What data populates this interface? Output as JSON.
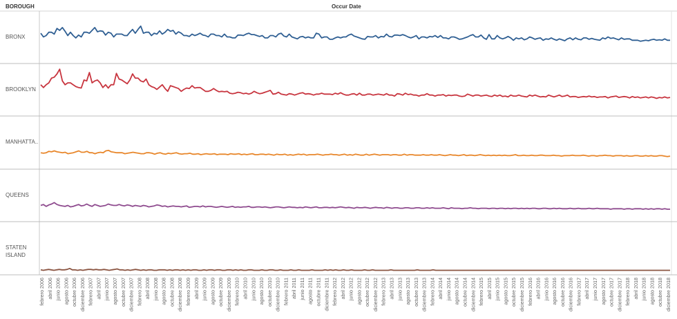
{
  "header": {
    "dimension": "BOROUGH",
    "column_title": "Occur Date"
  },
  "chart_data": {
    "type": "line",
    "title": "",
    "xlabel": "Occur Date",
    "ylabel": "",
    "grid": false,
    "legend": "none",
    "x_start": "2006-01",
    "x_end": "2018-12",
    "tick_labels": [
      "febrero 2006",
      "abril 2006",
      "junio 2006",
      "agosto 2006",
      "octubre 2006",
      "diciembre 2006",
      "febrero 2007",
      "abril 2007",
      "junio 2007",
      "agosto 2007",
      "octubre 2007",
      "diciembre 2007",
      "febrero 2008",
      "abril 2008",
      "junio 2008",
      "agosto 2008",
      "octubre 2008",
      "diciembre 2008",
      "febrero 2009",
      "abril 2009",
      "junio 2009",
      "agosto 2009",
      "octubre 2009",
      "diciembre 2009",
      "febrero 2010",
      "abril 2010",
      "junio 2010",
      "agosto 2010",
      "octubre 2010",
      "diciembre 2010",
      "febrero 2011",
      "abril 2011",
      "junio 2011",
      "agosto 2011",
      "octubre 2011",
      "diciembre 2011",
      "febrero 2012",
      "abril 2012",
      "junio 2012",
      "agosto 2012",
      "octubre 2012",
      "diciembre 2012",
      "febrero 2013",
      "abril 2013",
      "junio 2013",
      "agosto 2013",
      "octubre 2013",
      "diciembre 2013",
      "febrero 2014",
      "abril 2014",
      "junio 2014",
      "agosto 2014",
      "octubre 2014",
      "diciembre 2014",
      "febrero 2015",
      "abril 2015",
      "junio 2015",
      "agosto 2015",
      "octubre 2015",
      "diciembre 2015",
      "febrero 2016",
      "abril 2016",
      "junio 2016",
      "agosto 2016",
      "octubre 2016",
      "diciembre 2016",
      "febrero 2017",
      "abril 2017",
      "junio 2017",
      "agosto 2017",
      "octubre 2017",
      "diciembre 2017",
      "febrero 2018",
      "abril 2018",
      "junio 2018",
      "agosto 2018",
      "octubre 2018",
      "diciembre 2018"
    ],
    "series": [
      {
        "name": "BRONX",
        "color": "#2f5f93",
        "values": [
          60,
          52,
          55,
          62,
          62,
          58,
          70,
          66,
          72,
          64,
          55,
          62,
          55,
          50,
          56,
          52,
          62,
          62,
          60,
          66,
          72,
          63,
          65,
          64,
          56,
          62,
          60,
          52,
          58,
          58,
          58,
          55,
          55,
          62,
          68,
          60,
          68,
          75,
          60,
          62,
          62,
          55,
          60,
          58,
          65,
          58,
          62,
          68,
          64,
          66,
          58,
          63,
          60,
          55,
          55,
          53,
          58,
          55,
          57,
          60,
          56,
          55,
          52,
          58,
          58,
          55,
          55,
          52,
          58,
          52,
          52,
          50,
          50,
          56,
          56,
          55,
          58,
          60,
          57,
          57,
          55,
          53,
          55,
          50,
          50,
          55,
          55,
          52,
          58,
          60,
          54,
          52,
          58,
          52,
          50,
          48,
          52,
          53,
          50,
          52,
          50,
          50,
          60,
          58,
          50,
          52,
          52,
          47,
          47,
          50,
          52,
          50,
          52,
          52,
          56,
          58,
          54,
          52,
          50,
          48,
          47,
          53,
          52,
          52,
          55,
          50,
          53,
          52,
          58,
          53,
          52,
          56,
          56,
          55,
          57,
          55,
          52,
          50,
          52,
          55,
          48,
          52,
          52,
          50,
          53,
          52,
          55,
          51,
          55,
          50,
          50,
          48,
          52,
          52,
          50,
          47,
          48,
          50,
          52,
          55,
          57,
          52,
          52,
          56,
          50,
          47,
          57,
          48,
          48,
          55,
          50,
          48,
          50,
          53,
          50,
          45,
          50,
          48,
          50,
          46,
          48,
          52,
          50,
          47,
          49,
          50,
          45,
          48,
          47,
          50,
          47,
          45,
          48,
          46,
          44,
          48,
          50,
          46,
          50,
          47,
          46,
          50,
          50,
          47,
          49,
          47,
          46,
          45,
          50,
          48,
          52,
          49,
          50,
          48,
          46,
          50,
          47,
          48,
          48,
          45,
          45,
          45,
          43,
          44,
          45,
          44,
          46,
          47,
          45,
          46,
          45,
          48,
          45,
          45
        ]
      },
      {
        "name": "BROOKLYN",
        "color": "#c8353f",
        "values": [
          62,
          56,
          62,
          66,
          76,
          78,
          85,
          95,
          70,
          62,
          66,
          66,
          62,
          58,
          56,
          55,
          72,
          70,
          88,
          66,
          70,
          72,
          66,
          56,
          62,
          55,
          62,
          62,
          86,
          74,
          72,
          68,
          64,
          72,
          85,
          76,
          76,
          70,
          68,
          74,
          62,
          58,
          56,
          52,
          57,
          62,
          54,
          48,
          60,
          58,
          56,
          54,
          48,
          52,
          55,
          54,
          60,
          55,
          56,
          56,
          52,
          48,
          48,
          50,
          54,
          50,
          47,
          48,
          47,
          48,
          44,
          43,
          44,
          46,
          45,
          43,
          44,
          42,
          44,
          48,
          45,
          43,
          44,
          46,
          48,
          50,
          42,
          43,
          46,
          42,
          41,
          40,
          43,
          42,
          40,
          42,
          44,
          45,
          42,
          43,
          42,
          40,
          42,
          42,
          44,
          42,
          42,
          42,
          41,
          44,
          42,
          45,
          42,
          40,
          40,
          42,
          43,
          40,
          44,
          40,
          40,
          42,
          42,
          40,
          41,
          42,
          41,
          40,
          43,
          40,
          40,
          38,
          43,
          42,
          40,
          44,
          41,
          42,
          40,
          40,
          38,
          40,
          40,
          43,
          40,
          40,
          38,
          40,
          40,
          41,
          38,
          40,
          39,
          40,
          40,
          38,
          37,
          38,
          42,
          40,
          38,
          40,
          40,
          38,
          39,
          40,
          38,
          37,
          40,
          38,
          40,
          37,
          38,
          36,
          40,
          38,
          38,
          40,
          38,
          37,
          36,
          40,
          38,
          40,
          38,
          36,
          37,
          36,
          40,
          38,
          36,
          38,
          40,
          37,
          38,
          40,
          36,
          37,
          37,
          35,
          36,
          37,
          36,
          38,
          36,
          37,
          35,
          36,
          36,
          37,
          34,
          36,
          37,
          38,
          35,
          36,
          37,
          36,
          34,
          37,
          35,
          36,
          34,
          35,
          36,
          34,
          36,
          35,
          33,
          35,
          34,
          36,
          34,
          35
        ]
      },
      {
        "name": "MANHATTA..",
        "color": "#e8862a",
        "values": [
          30,
          29,
          30,
          33,
          32,
          34,
          32,
          31,
          30,
          31,
          28,
          29,
          30,
          32,
          34,
          31,
          31,
          33,
          30,
          30,
          28,
          30,
          31,
          30,
          34,
          35,
          32,
          31,
          30,
          30,
          30,
          28,
          29,
          30,
          31,
          30,
          29,
          28,
          28,
          30,
          30,
          29,
          27,
          29,
          30,
          28,
          27,
          29,
          28,
          29,
          30,
          28,
          27,
          28,
          28,
          29,
          27,
          27,
          28,
          26,
          27,
          28,
          27,
          27,
          28,
          26,
          27,
          27,
          27,
          26,
          28,
          27,
          27,
          28,
          26,
          27,
          26,
          27,
          28,
          26,
          26,
          27,
          27,
          26,
          27,
          26,
          25,
          27,
          26,
          26,
          27,
          25,
          26,
          25,
          26,
          27,
          26,
          27,
          25,
          26,
          26,
          26,
          27,
          26,
          25,
          26,
          26,
          27,
          26,
          26,
          25,
          26,
          27,
          25,
          26,
          25,
          27,
          26,
          25,
          25,
          27,
          25,
          26,
          27,
          26,
          25,
          26,
          26,
          26,
          25,
          26,
          26,
          25,
          25,
          27,
          25,
          26,
          26,
          25,
          25,
          25,
          26,
          25,
          25,
          26,
          25,
          25,
          26,
          25,
          24,
          25,
          26,
          25,
          25,
          24,
          25,
          26,
          24,
          25,
          25,
          24,
          25,
          26,
          25,
          24,
          25,
          24,
          25,
          24,
          25,
          24,
          25,
          24,
          24,
          25,
          26,
          24,
          24,
          25,
          24,
          24,
          25,
          24,
          24,
          25,
          25,
          24,
          24,
          24,
          25,
          24,
          24,
          23,
          24,
          24,
          24,
          25,
          24,
          24,
          24,
          25,
          24,
          23,
          24,
          24,
          23,
          24,
          24,
          25,
          24,
          24,
          23,
          24,
          24,
          24,
          23,
          24,
          23,
          23,
          24,
          24,
          23,
          23,
          24,
          23,
          24,
          23,
          23,
          24,
          24,
          23,
          22,
          23
        ]
      },
      {
        "name": "QUEENS",
        "color": "#8e4a8e",
        "values": [
          30,
          32,
          28,
          31,
          33,
          36,
          32,
          30,
          29,
          28,
          30,
          27,
          28,
          30,
          32,
          29,
          30,
          33,
          30,
          28,
          32,
          30,
          28,
          29,
          30,
          33,
          31,
          30,
          30,
          32,
          30,
          29,
          31,
          30,
          28,
          30,
          29,
          28,
          30,
          29,
          27,
          28,
          29,
          31,
          30,
          28,
          29,
          27,
          28,
          29,
          28,
          28,
          27,
          28,
          29,
          26,
          27,
          28,
          28,
          27,
          29,
          27,
          28,
          28,
          27,
          26,
          27,
          28,
          27,
          26,
          27,
          28,
          26,
          27,
          26,
          27,
          27,
          28,
          26,
          26,
          27,
          27,
          26,
          27,
          26,
          25,
          26,
          27,
          27,
          26,
          25,
          26,
          27,
          26,
          26,
          25,
          26,
          25,
          27,
          26,
          25,
          26,
          27,
          25,
          25,
          26,
          26,
          25,
          26,
          25,
          26,
          27,
          26,
          25,
          26,
          25,
          24,
          26,
          25,
          25,
          26,
          25,
          24,
          25,
          26,
          25,
          25,
          24,
          26,
          25,
          24,
          25,
          25,
          24,
          24,
          25,
          25,
          24,
          24,
          25,
          25,
          24,
          24,
          25,
          24,
          25,
          24,
          24,
          24,
          25,
          24,
          23,
          25,
          24,
          24,
          24,
          23,
          24,
          24,
          25,
          24,
          24,
          23,
          24,
          24,
          24,
          23,
          24,
          24,
          23,
          24,
          24,
          23,
          24,
          23,
          24,
          24,
          23,
          24,
          23,
          24,
          23,
          24,
          24,
          23,
          23,
          24,
          24,
          23,
          23,
          24,
          23,
          24,
          23,
          23,
          23,
          24,
          23,
          23,
          24,
          23,
          23,
          23,
          24,
          23,
          23,
          24,
          23,
          23,
          23,
          23,
          22,
          23,
          23,
          23,
          23,
          22,
          23,
          23,
          22,
          23,
          23,
          23,
          22,
          23,
          22,
          23,
          22,
          23,
          23,
          22,
          23,
          22,
          22
        ]
      },
      {
        "name": "STATEN ISLAND",
        "color": "#8b5542",
        "values": [
          6,
          5,
          6,
          7,
          6,
          5,
          6,
          7,
          6,
          6,
          7,
          9,
          6,
          6,
          5,
          6,
          5,
          6,
          7,
          7,
          6,
          7,
          6,
          6,
          7,
          6,
          5,
          6,
          7,
          8,
          6,
          6,
          5,
          6,
          5,
          6,
          7,
          6,
          5,
          6,
          5,
          6,
          6,
          5,
          5,
          6,
          6,
          6,
          5,
          6,
          5,
          6,
          6,
          5,
          6,
          5,
          6,
          5,
          6,
          6,
          5,
          5,
          6,
          5,
          6,
          6,
          5,
          6,
          6,
          5,
          5,
          6,
          6,
          5,
          6,
          5,
          6,
          5,
          5,
          6,
          6,
          5,
          5,
          5,
          6,
          5,
          5,
          6,
          6,
          5,
          5,
          6,
          5,
          5,
          5,
          6,
          5,
          5,
          6,
          5,
          5,
          5,
          5,
          6,
          5,
          5,
          5,
          5,
          6,
          5,
          6,
          5,
          6,
          5,
          5,
          6,
          5,
          5,
          6,
          5,
          5,
          5,
          5,
          6,
          5,
          5,
          6,
          5,
          5,
          5,
          5,
          5,
          5,
          6,
          5,
          5,
          5,
          5,
          5,
          5,
          5,
          5,
          5,
          6,
          5,
          5,
          5,
          5,
          5,
          6,
          5,
          5,
          5,
          5,
          5,
          5,
          5,
          5,
          5,
          5,
          5,
          5,
          5,
          5,
          5,
          5,
          5,
          5,
          5,
          5,
          5,
          5,
          5,
          5,
          5,
          5,
          5,
          5,
          5,
          5,
          5,
          5,
          5,
          5,
          5,
          5,
          5,
          5,
          5,
          5,
          5,
          5,
          5,
          5,
          5,
          5,
          5,
          5,
          5,
          5,
          5,
          5,
          5,
          5,
          5,
          5,
          5,
          5,
          5,
          5,
          5,
          5,
          5,
          5,
          5,
          5,
          5,
          5,
          5,
          5,
          5,
          5,
          5,
          5,
          5,
          5,
          5,
          5,
          5,
          5,
          5,
          5,
          5,
          5,
          5,
          5,
          5,
          5,
          5,
          5
        ]
      }
    ]
  }
}
